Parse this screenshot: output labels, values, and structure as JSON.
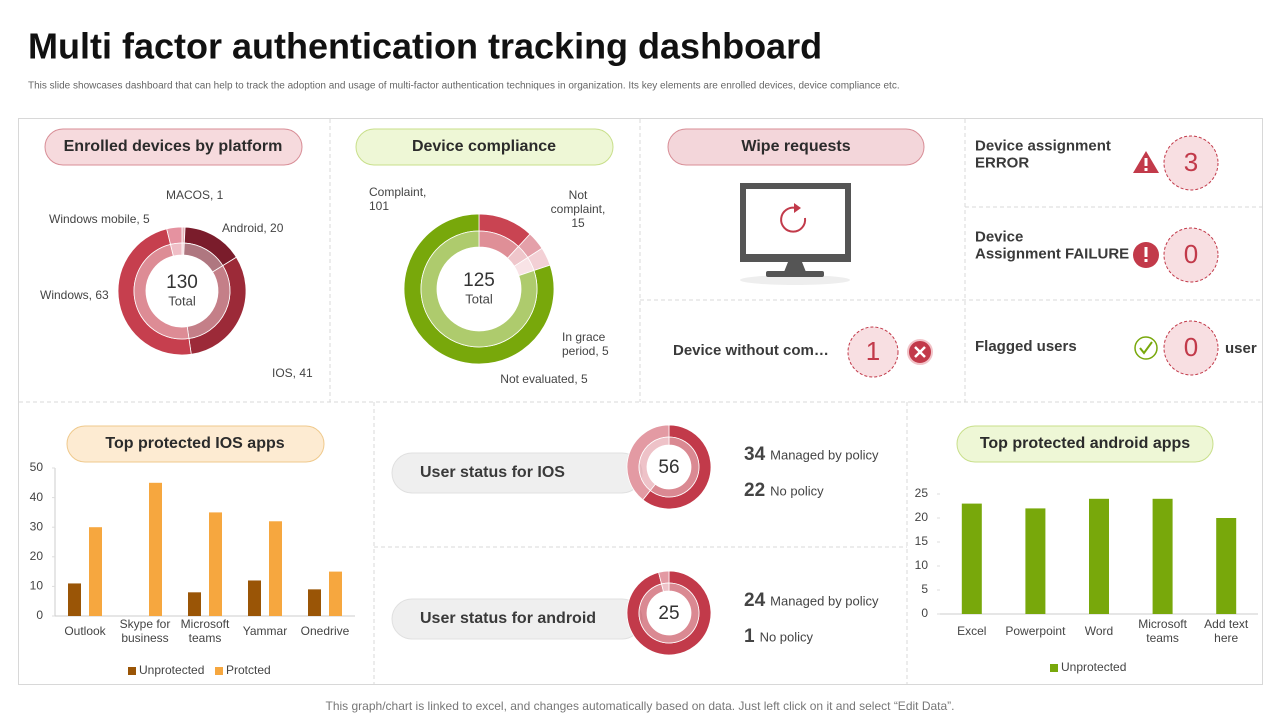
{
  "title": "Multi factor authentication tracking dashboard",
  "subtitle": "This slide showcases dashboard that can help to track the adoption and usage of multi-factor authentication techniques in organization. Its key elements are enrolled devices, device compliance etc.",
  "footer": "This graph/chart is linked to excel,  and changes automatically based on data. Just left click on it and select “Edit Data”.",
  "wipe_requests": {
    "title": "Wipe requests"
  },
  "kpis": [
    {
      "label": "Device assignment\nERROR",
      "value": 3
    },
    {
      "label": "Device\nAssignment FAILURE",
      "value": 0
    },
    {
      "label": "Device without com…",
      "value": 1
    },
    {
      "label": "Flagged users",
      "value": 0,
      "unit": "user"
    }
  ],
  "chart_data": [
    {
      "type": "donut",
      "title": "Enrolled devices by platform",
      "values": [
        1,
        20,
        41,
        63,
        5
      ],
      "value_labels": [
        "MACOS,  1",
        "Android, 20",
        "IOS, 41",
        "Windows, 63",
        "Windows mobile, 5"
      ],
      "colors": [
        "#e7b3b9",
        "#7a1c2b",
        "#9c2a38",
        "#c63f4e",
        "#e592a0"
      ],
      "center_value": 130,
      "center_label": "Total"
    },
    {
      "type": "donut",
      "title": "Device compliance",
      "values": [
        15,
        5,
        5,
        101
      ],
      "value_labels": [
        "Not\ncomplaint,\n15",
        "In grace\nperiod, 5",
        "Not evaluated, 5",
        "Complaint,\n101"
      ],
      "colors": [
        "#c94452",
        "#e4a0a9",
        "#f3d0d5",
        "#78a80b"
      ],
      "center_value": 125,
      "center_label": "Total"
    },
    {
      "type": "bar",
      "title": "Top protected IOS apps",
      "categories": [
        "Outlook",
        "Skype for\nbusiness",
        "Microsoft\nteams",
        "Yammar",
        "Onedrive"
      ],
      "series": [
        {
          "name": "Unprotected",
          "color": "#9a5506",
          "values": [
            11,
            0,
            8,
            12,
            9
          ]
        },
        {
          "name": "Protcted",
          "color": "#f6a73f",
          "values": [
            30,
            45,
            35,
            32,
            15
          ]
        }
      ],
      "ylim": [
        0,
        50
      ],
      "yticks": [
        0,
        10,
        20,
        30,
        40,
        50
      ],
      "legend": "bottom"
    },
    {
      "type": "donut",
      "title": "User status for IOS",
      "categories": [
        "Managed by policy",
        "No policy"
      ],
      "values": [
        34,
        22
      ],
      "colors": [
        "#c23a4a",
        "#e39aa3"
      ],
      "center_value": 56
    },
    {
      "type": "donut",
      "title": "User status for android",
      "categories": [
        "Managed by policy",
        "No policy"
      ],
      "values": [
        24,
        1
      ],
      "colors": [
        "#c23a4a",
        "#e39aa3"
      ],
      "center_value": 25
    },
    {
      "type": "bar",
      "title": "Top protected android apps",
      "categories": [
        "Excel",
        "Powerpoint",
        "Word",
        "Microsoft\nteams",
        "Add text\nhere"
      ],
      "series": [
        {
          "name": "Unprotected",
          "color": "#78a80b",
          "values": [
            23,
            22,
            24,
            24,
            20
          ]
        }
      ],
      "ylim": [
        0,
        25
      ],
      "yticks": [
        0,
        5,
        10,
        15,
        20,
        25
      ],
      "legend": "bottom"
    }
  ]
}
